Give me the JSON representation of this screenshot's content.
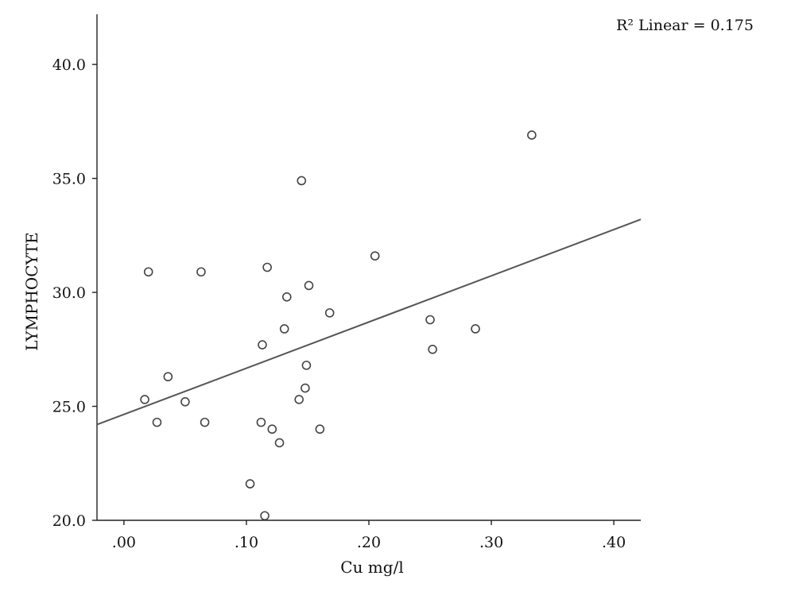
{
  "chart_data": {
    "type": "scatter",
    "xlabel": "Cu mg/l",
    "ylabel": "LYMPHOCYTE",
    "xlim": [
      -0.022,
      0.422
    ],
    "ylim": [
      20.0,
      42.2
    ],
    "x_ticks": [
      ".00",
      ".10",
      ".20",
      ".30",
      ".40"
    ],
    "x_tick_values": [
      0.0,
      0.1,
      0.2,
      0.3,
      0.4
    ],
    "y_ticks": [
      "20.0",
      "25.0",
      "30.0",
      "35.0",
      "40.0"
    ],
    "y_tick_values": [
      20.0,
      25.0,
      30.0,
      35.0,
      40.0
    ],
    "grid": false,
    "annotation": "R² Linear = 0.175",
    "fit_line": {
      "x": [
        -0.022,
        0.422
      ],
      "y": [
        24.2,
        33.2
      ]
    },
    "points": [
      {
        "x": 0.017,
        "y": 25.3
      },
      {
        "x": 0.02,
        "y": 30.9
      },
      {
        "x": 0.027,
        "y": 24.3
      },
      {
        "x": 0.036,
        "y": 26.3
      },
      {
        "x": 0.05,
        "y": 25.2
      },
      {
        "x": 0.063,
        "y": 30.9
      },
      {
        "x": 0.066,
        "y": 24.3
      },
      {
        "x": 0.103,
        "y": 21.6
      },
      {
        "x": 0.112,
        "y": 24.3
      },
      {
        "x": 0.113,
        "y": 27.7
      },
      {
        "x": 0.115,
        "y": 20.2
      },
      {
        "x": 0.117,
        "y": 31.1
      },
      {
        "x": 0.121,
        "y": 24.0
      },
      {
        "x": 0.127,
        "y": 23.4
      },
      {
        "x": 0.131,
        "y": 28.4
      },
      {
        "x": 0.133,
        "y": 29.8
      },
      {
        "x": 0.143,
        "y": 25.3
      },
      {
        "x": 0.145,
        "y": 34.9
      },
      {
        "x": 0.148,
        "y": 25.8
      },
      {
        "x": 0.149,
        "y": 26.8
      },
      {
        "x": 0.151,
        "y": 30.3
      },
      {
        "x": 0.16,
        "y": 24.0
      },
      {
        "x": 0.168,
        "y": 29.1
      },
      {
        "x": 0.205,
        "y": 31.6
      },
      {
        "x": 0.25,
        "y": 28.8
      },
      {
        "x": 0.252,
        "y": 27.5
      },
      {
        "x": 0.287,
        "y": 28.4
      },
      {
        "x": 0.333,
        "y": 36.9
      }
    ]
  }
}
